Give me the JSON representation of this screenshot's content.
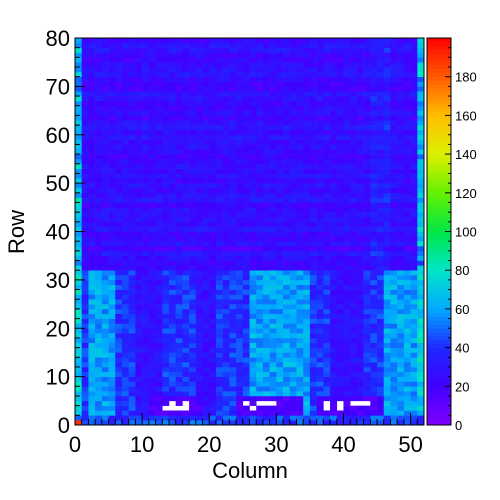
{
  "chart_data": {
    "type": "heatmap",
    "title": "",
    "xlabel": "Column",
    "ylabel": "Row",
    "xlim": [
      0,
      52
    ],
    "ylim": [
      0,
      80
    ],
    "n_cols": 52,
    "n_rows": 80,
    "x_ticks": [
      0,
      10,
      20,
      30,
      40,
      50
    ],
    "y_ticks": [
      0,
      10,
      20,
      30,
      40,
      50,
      60,
      70,
      80
    ],
    "z_range": [
      0,
      200
    ],
    "z_ticks": [
      0,
      20,
      40,
      60,
      80,
      100,
      120,
      140,
      160,
      180
    ],
    "colormap": "rainbow (purple-blue-cyan-green-yellow-orange-red)",
    "grid": false,
    "regions": [
      {
        "description": "upper band rows 32-80",
        "typical_value": 25
      },
      {
        "description": "lower band rows 0-32",
        "typical_value": 40
      },
      {
        "description": "bright stripes columns 2-5, 26-34, 46-51 in rows 0-32",
        "typical_value": 60
      },
      {
        "description": "empty (zero) cells in rows 2-5",
        "column_ranges": [
          [
            11,
            18
          ],
          [
            24,
            33
          ],
          [
            36,
            45
          ]
        ],
        "typical_value": 0
      }
    ]
  }
}
